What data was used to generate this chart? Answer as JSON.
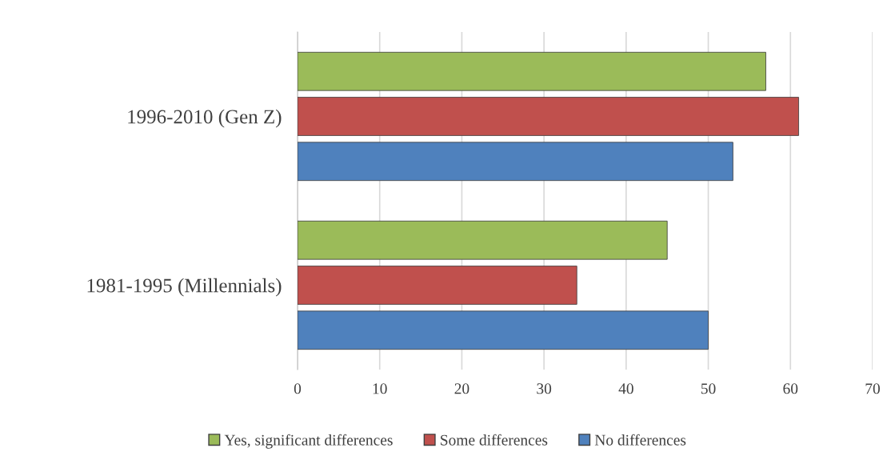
{
  "chart_data": {
    "type": "bar",
    "orientation": "horizontal",
    "categories": [
      "1996-2010 (Gen Z)",
      "1981-1995 (Millennials)"
    ],
    "series": [
      {
        "name": "Yes, significant differences",
        "color": "#9bbb59",
        "values": [
          57,
          45
        ]
      },
      {
        "name": "Some differences",
        "color": "#c0504d",
        "values": [
          61,
          34
        ]
      },
      {
        "name": "No differences",
        "color": "#4f81bd",
        "values": [
          53,
          50
        ]
      }
    ],
    "xlim": [
      0,
      70
    ],
    "xticks": [
      0,
      10,
      20,
      30,
      40,
      50,
      60,
      70
    ],
    "grid": "x",
    "legend": "bottom"
  }
}
